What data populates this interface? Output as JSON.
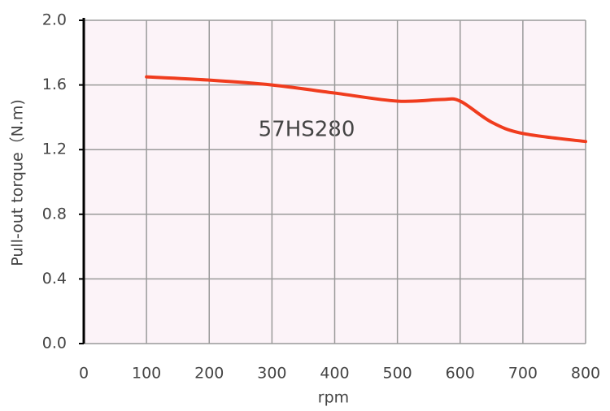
{
  "chart_data": {
    "type": "line",
    "annotation": "57HS280",
    "xlabel": "rpm",
    "ylabel": "Pull-out torque（N.m)",
    "x": [
      100,
      200,
      300,
      400,
      500,
      570,
      600,
      650,
      700,
      800
    ],
    "values": [
      1.65,
      1.63,
      1.6,
      1.55,
      1.5,
      1.51,
      1.5,
      1.37,
      1.3,
      1.25
    ],
    "color": "#f03c1e",
    "xlim": [
      0,
      800
    ],
    "xticks": [
      0,
      100,
      200,
      300,
      400,
      500,
      600,
      700,
      800
    ],
    "ylim": [
      0,
      2
    ],
    "yticks": [
      {
        "value": 0,
        "label": "0.0"
      },
      0.4,
      0.8,
      1.2,
      1.6,
      {
        "value": 2,
        "label": "2.0"
      }
    ],
    "grid": true
  }
}
